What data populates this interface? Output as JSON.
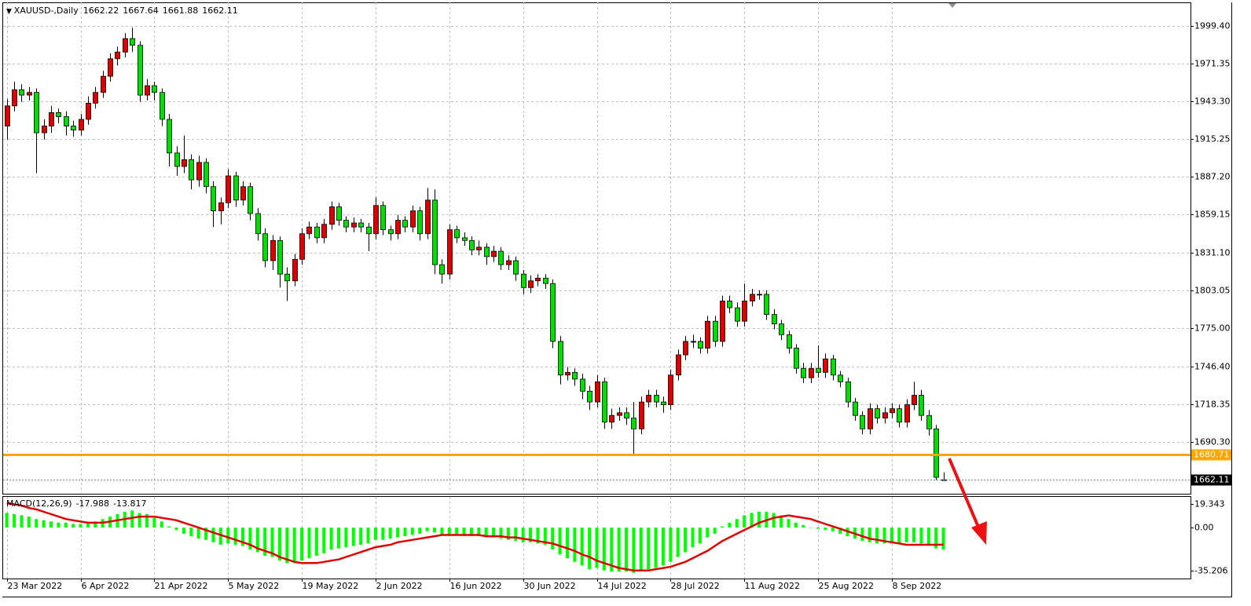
{
  "chart_data": {
    "type": "candlestick",
    "symbol": "XAUUSD-,Daily",
    "ohlc": [
      [
        1925,
        1945,
        1915,
        1940
      ],
      [
        1940,
        1958,
        1936,
        1952
      ],
      [
        1952,
        1956,
        1943,
        1948
      ],
      [
        1948,
        1954,
        1944,
        1950
      ],
      [
        1950,
        1953,
        1890,
        1920
      ],
      [
        1920,
        1930,
        1915,
        1925
      ],
      [
        1925,
        1940,
        1920,
        1935
      ],
      [
        1935,
        1938,
        1927,
        1932
      ],
      [
        1932,
        1936,
        1918,
        1925
      ],
      [
        1925,
        1929,
        1917,
        1922
      ],
      [
        1922,
        1934,
        1918,
        1930
      ],
      [
        1930,
        1947,
        1926,
        1942
      ],
      [
        1942,
        1954,
        1938,
        1950
      ],
      [
        1950,
        1966,
        1946,
        1962
      ],
      [
        1962,
        1979,
        1958,
        1975
      ],
      [
        1975,
        1984,
        1970,
        1980
      ],
      [
        1980,
        1994,
        1976,
        1990
      ],
      [
        1990,
        1998,
        1980,
        1985
      ],
      [
        1985,
        1988,
        1943,
        1948
      ],
      [
        1948,
        1960,
        1944,
        1955
      ],
      [
        1955,
        1958,
        1944,
        1950
      ],
      [
        1950,
        1953,
        1925,
        1930
      ],
      [
        1930,
        1934,
        1895,
        1905
      ],
      [
        1905,
        1910,
        1888,
        1895
      ],
      [
        1895,
        1918,
        1890,
        1900
      ],
      [
        1900,
        1904,
        1878,
        1885
      ],
      [
        1885,
        1903,
        1880,
        1898
      ],
      [
        1898,
        1901,
        1875,
        1880
      ],
      [
        1880,
        1884,
        1850,
        1862
      ],
      [
        1862,
        1872,
        1852,
        1868
      ],
      [
        1868,
        1893,
        1864,
        1888
      ],
      [
        1888,
        1891,
        1865,
        1870
      ],
      [
        1870,
        1884,
        1866,
        1880
      ],
      [
        1880,
        1883,
        1855,
        1860
      ],
      [
        1860,
        1864,
        1840,
        1845
      ],
      [
        1845,
        1849,
        1820,
        1825
      ],
      [
        1825,
        1844,
        1818,
        1840
      ],
      [
        1840,
        1843,
        1805,
        1815
      ],
      [
        1815,
        1820,
        1795,
        1810
      ],
      [
        1810,
        1830,
        1806,
        1826
      ],
      [
        1826,
        1849,
        1822,
        1845
      ],
      [
        1845,
        1854,
        1841,
        1850
      ],
      [
        1850,
        1853,
        1838,
        1842
      ],
      [
        1842,
        1856,
        1838,
        1852
      ],
      [
        1852,
        1869,
        1848,
        1865
      ],
      [
        1865,
        1868,
        1851,
        1855
      ],
      [
        1855,
        1858,
        1846,
        1850
      ],
      [
        1850,
        1857,
        1846,
        1853
      ],
      [
        1853,
        1856,
        1846,
        1850
      ],
      [
        1850,
        1853,
        1832,
        1845
      ],
      [
        1845,
        1872,
        1841,
        1866
      ],
      [
        1866,
        1869,
        1844,
        1848
      ],
      [
        1848,
        1851,
        1840,
        1845
      ],
      [
        1845,
        1859,
        1841,
        1855
      ],
      [
        1855,
        1858,
        1846,
        1850
      ],
      [
        1850,
        1866,
        1846,
        1862
      ],
      [
        1862,
        1865,
        1840,
        1845
      ],
      [
        1845,
        1879,
        1841,
        1870
      ],
      [
        1870,
        1878,
        1815,
        1822
      ],
      [
        1822,
        1826,
        1808,
        1815
      ],
      [
        1815,
        1852,
        1811,
        1848
      ],
      [
        1848,
        1851,
        1838,
        1842
      ],
      [
        1842,
        1846,
        1836,
        1840
      ],
      [
        1840,
        1843,
        1829,
        1833
      ],
      [
        1833,
        1840,
        1829,
        1835
      ],
      [
        1835,
        1838,
        1822,
        1828
      ],
      [
        1828,
        1836,
        1824,
        1832
      ],
      [
        1832,
        1835,
        1818,
        1822
      ],
      [
        1822,
        1829,
        1818,
        1825
      ],
      [
        1825,
        1828,
        1810,
        1815
      ],
      [
        1815,
        1818,
        1800,
        1805
      ],
      [
        1805,
        1814,
        1801,
        1810
      ],
      [
        1810,
        1815,
        1806,
        1812
      ],
      [
        1812,
        1815,
        1804,
        1808
      ],
      [
        1808,
        1811,
        1760,
        1765
      ],
      [
        1765,
        1769,
        1733,
        1740
      ],
      [
        1740,
        1746,
        1736,
        1742
      ],
      [
        1742,
        1745,
        1732,
        1737
      ],
      [
        1737,
        1741,
        1722,
        1728
      ],
      [
        1728,
        1732,
        1714,
        1720
      ],
      [
        1720,
        1740,
        1716,
        1735
      ],
      [
        1735,
        1738,
        1700,
        1705
      ],
      [
        1705,
        1715,
        1700,
        1710
      ],
      [
        1710,
        1716,
        1706,
        1712
      ],
      [
        1712,
        1716,
        1703,
        1708
      ],
      [
        1708,
        1720,
        1681,
        1700
      ],
      [
        1700,
        1724,
        1696,
        1720
      ],
      [
        1720,
        1729,
        1716,
        1725
      ],
      [
        1725,
        1729,
        1716,
        1720
      ],
      [
        1720,
        1724,
        1712,
        1718
      ],
      [
        1718,
        1744,
        1714,
        1740
      ],
      [
        1740,
        1759,
        1736,
        1755
      ],
      [
        1755,
        1769,
        1751,
        1765
      ],
      [
        1765,
        1770,
        1760,
        1765
      ],
      [
        1765,
        1768,
        1756,
        1760
      ],
      [
        1760,
        1784,
        1756,
        1780
      ],
      [
        1780,
        1784,
        1761,
        1765
      ],
      [
        1765,
        1799,
        1761,
        1795
      ],
      [
        1795,
        1799,
        1786,
        1790
      ],
      [
        1790,
        1794,
        1776,
        1780
      ],
      [
        1780,
        1808,
        1776,
        1795
      ],
      [
        1795,
        1804,
        1791,
        1800
      ],
      [
        1800,
        1803,
        1796,
        1800
      ],
      [
        1800,
        1803,
        1781,
        1785
      ],
      [
        1785,
        1789,
        1774,
        1778
      ],
      [
        1778,
        1781,
        1766,
        1770
      ],
      [
        1770,
        1773,
        1756,
        1760
      ],
      [
        1760,
        1763,
        1741,
        1745
      ],
      [
        1745,
        1749,
        1734,
        1738
      ],
      [
        1738,
        1749,
        1734,
        1745
      ],
      [
        1745,
        1762,
        1738,
        1742
      ],
      [
        1742,
        1756,
        1738,
        1752
      ],
      [
        1752,
        1755,
        1736,
        1740
      ],
      [
        1740,
        1743,
        1731,
        1735
      ],
      [
        1735,
        1738,
        1716,
        1720
      ],
      [
        1720,
        1723,
        1706,
        1710
      ],
      [
        1710,
        1713,
        1696,
        1700
      ],
      [
        1700,
        1719,
        1696,
        1715
      ],
      [
        1715,
        1718,
        1704,
        1708
      ],
      [
        1708,
        1716,
        1704,
        1712
      ],
      [
        1712,
        1719,
        1708,
        1715
      ],
      [
        1715,
        1718,
        1701,
        1705
      ],
      [
        1705,
        1722,
        1701,
        1718
      ],
      [
        1718,
        1735,
        1714,
        1725
      ],
      [
        1725,
        1729,
        1706,
        1710
      ],
      [
        1710,
        1714,
        1695,
        1700
      ],
      [
        1700,
        1703,
        1662,
        1664
      ],
      [
        1662.22,
        1667.64,
        1661.88,
        1662.11
      ]
    ],
    "up_color": "#e00000",
    "down_color": "#00e000",
    "xlim": [
      -0.5,
      160.5
    ],
    "xticks": [
      {
        "value": 0,
        "label": "23 Mar 2022"
      },
      {
        "value": 10,
        "label": "6 Apr 2022"
      },
      {
        "value": 20,
        "label": "21 Apr 2022"
      },
      {
        "value": 30,
        "label": "5 May 2022"
      },
      {
        "value": 40,
        "label": "19 May 2022"
      },
      {
        "value": 50,
        "label": "2 Jun 2022"
      },
      {
        "value": 60,
        "label": "16 Jun 2022"
      },
      {
        "value": 70,
        "label": "30 Jun 2022"
      },
      {
        "value": 80,
        "label": "14 Jul 2022"
      },
      {
        "value": 90,
        "label": "28 Jul 2022"
      },
      {
        "value": 100,
        "label": "11 Aug 2022"
      },
      {
        "value": 110,
        "label": "25 Aug 2022"
      },
      {
        "value": 120,
        "label": "8 Sep 2022"
      }
    ],
    "ylim": [
      1652.4,
      2016.9
    ],
    "yticks": [
      {
        "value": 1999.4,
        "label": "1999.40"
      },
      1971.35,
      {
        "value": 1943.3,
        "label": "1943.30"
      },
      1915.25,
      {
        "value": 1887.2,
        "label": "1887.20"
      },
      1859.15,
      {
        "value": 1831.1,
        "label": "1831.10"
      },
      1803.05,
      {
        "value": 1775,
        "label": "1775.00"
      },
      {
        "value": 1746.4,
        "label": "1746.40"
      },
      1718.35,
      {
        "value": 1690.3,
        "label": "1690.30"
      }
    ],
    "grid": true,
    "hline": {
      "value": 1680.71,
      "color": "#ffa500"
    },
    "macd": {
      "label": "MACD(12,26,9)",
      "hist_color": "#00ff00",
      "signal_color": "#e00000",
      "ylim": [
        -41.62,
        25.12
      ],
      "yticks": [
        19.343,
        {
          "value": 0,
          "label": "0.00"
        },
        -35.206
      ],
      "histogram": [
        12,
        11,
        10,
        9,
        7,
        6,
        5,
        4,
        4,
        3,
        3,
        4,
        5,
        7,
        9,
        11,
        13,
        14,
        12,
        11,
        8,
        5,
        1,
        -2,
        -5,
        -7,
        -9,
        -10,
        -12,
        -14,
        -13,
        -14,
        -15,
        -18,
        -20,
        -23,
        -24,
        -27,
        -29,
        -29,
        -27,
        -25,
        -23,
        -21,
        -18,
        -17,
        -16,
        -15,
        -14,
        -13,
        -10,
        -10,
        -9,
        -8,
        -7,
        -6,
        -5,
        -3,
        -4,
        -6,
        -6,
        -6,
        -7,
        -7,
        -7,
        -8,
        -8,
        -9,
        -10,
        -11,
        -12,
        -12,
        -13,
        -14,
        -18,
        -22,
        -25,
        -28,
        -31,
        -34,
        -33,
        -35,
        -36,
        -36,
        -36,
        -37,
        -35,
        -34,
        -33,
        -31,
        -28,
        -24,
        -20,
        -16,
        -13,
        -8,
        -5,
        1,
        4,
        7,
        10,
        12,
        13,
        13,
        12,
        10,
        7,
        4,
        2,
        0,
        -1,
        -2,
        -3,
        -5,
        -7,
        -9,
        -11,
        -12,
        -13,
        -13,
        -13,
        -13,
        -12,
        -12,
        -13,
        -14,
        -17,
        -17.988
      ],
      "signal": [
        20,
        19,
        18,
        16,
        15,
        13,
        11,
        9,
        7,
        6,
        5,
        4,
        4,
        4,
        5,
        6,
        7,
        8,
        9,
        9,
        9,
        8,
        7,
        6,
        4,
        2,
        0,
        -2,
        -4,
        -6,
        -8,
        -10,
        -12,
        -14,
        -17,
        -19,
        -21,
        -24,
        -26,
        -28,
        -29,
        -29,
        -29,
        -28,
        -27,
        -26,
        -24,
        -22,
        -20,
        -18,
        -16,
        -15,
        -14,
        -12,
        -11,
        -10,
        -9,
        -8,
        -7,
        -6,
        -6,
        -6,
        -6,
        -6,
        -6,
        -7,
        -7,
        -7,
        -8,
        -8,
        -9,
        -10,
        -11,
        -12,
        -13,
        -15,
        -17,
        -19,
        -22,
        -24,
        -27,
        -29,
        -31,
        -33,
        -34,
        -35,
        -35,
        -35,
        -34,
        -33,
        -32,
        -30,
        -28,
        -25,
        -22,
        -19,
        -15,
        -11,
        -8,
        -5,
        -2,
        1,
        4,
        6,
        8,
        9,
        10,
        9,
        8,
        7,
        5,
        3,
        1,
        -1,
        -3,
        -5,
        -7,
        -9,
        -10,
        -11,
        -12,
        -13,
        -14,
        -14,
        -14,
        -14,
        -14,
        -13.817
      ]
    }
  }
}
